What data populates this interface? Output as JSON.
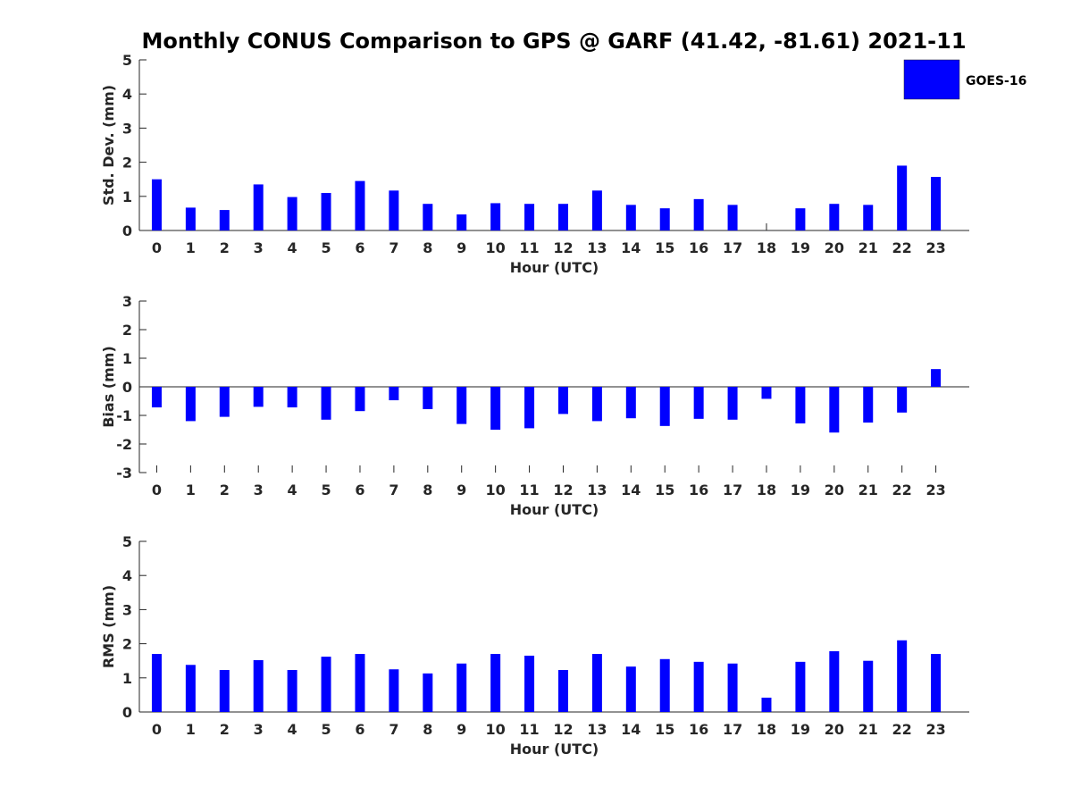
{
  "figure": {
    "title": "Monthly CONUS Comparison to GPS @ GARF (41.42, -81.61) 2021-11",
    "bar_color": "#0000ff",
    "legend": {
      "label": "GOES-16",
      "placement": "top-right"
    }
  },
  "chart_data": [
    {
      "type": "bar",
      "xlabel": "Hour (UTC)",
      "ylabel": "Std. Dev. (mm)",
      "ylim": [
        0,
        5
      ],
      "yticks": [
        0,
        1,
        2,
        3,
        4,
        5
      ],
      "categories": [
        "0",
        "1",
        "2",
        "3",
        "4",
        "5",
        "6",
        "7",
        "8",
        "9",
        "10",
        "11",
        "12",
        "13",
        "14",
        "15",
        "16",
        "17",
        "18",
        "19",
        "20",
        "21",
        "22",
        "23"
      ],
      "series": [
        {
          "name": "GOES-16",
          "values": [
            1.5,
            0.67,
            0.6,
            1.35,
            0.98,
            1.1,
            1.45,
            1.17,
            0.78,
            0.47,
            0.8,
            0.78,
            0.78,
            1.17,
            0.75,
            0.65,
            0.92,
            0.75,
            0.0,
            0.65,
            0.78,
            0.75,
            1.9,
            1.57
          ]
        }
      ]
    },
    {
      "type": "bar",
      "xlabel": "Hour (UTC)",
      "ylabel": "Bias (mm)",
      "ylim": [
        -3,
        3
      ],
      "yticks": [
        -3,
        -2,
        -1,
        0,
        1,
        2,
        3
      ],
      "categories": [
        "0",
        "1",
        "2",
        "3",
        "4",
        "5",
        "6",
        "7",
        "8",
        "9",
        "10",
        "11",
        "12",
        "13",
        "14",
        "15",
        "16",
        "17",
        "18",
        "19",
        "20",
        "21",
        "22",
        "23"
      ],
      "series": [
        {
          "name": "GOES-16",
          "values": [
            -0.72,
            -1.2,
            -1.05,
            -0.7,
            -0.72,
            -1.15,
            -0.85,
            -0.47,
            -0.78,
            -1.3,
            -1.5,
            -1.45,
            -0.95,
            -1.2,
            -1.1,
            -1.37,
            -1.12,
            -1.15,
            -0.42,
            -1.28,
            -1.6,
            -1.25,
            -0.9,
            0.62
          ]
        }
      ]
    },
    {
      "type": "bar",
      "xlabel": "Hour (UTC)",
      "ylabel": "RMS (mm)",
      "ylim": [
        0,
        5
      ],
      "yticks": [
        0,
        1,
        2,
        3,
        4,
        5
      ],
      "categories": [
        "0",
        "1",
        "2",
        "3",
        "4",
        "5",
        "6",
        "7",
        "8",
        "9",
        "10",
        "11",
        "12",
        "13",
        "14",
        "15",
        "16",
        "17",
        "18",
        "19",
        "20",
        "21",
        "22",
        "23"
      ],
      "series": [
        {
          "name": "GOES-16",
          "values": [
            1.7,
            1.38,
            1.23,
            1.52,
            1.23,
            1.62,
            1.7,
            1.25,
            1.13,
            1.42,
            1.7,
            1.65,
            1.23,
            1.7,
            1.33,
            1.55,
            1.47,
            1.42,
            0.42,
            1.47,
            1.78,
            1.5,
            2.1,
            1.7
          ]
        }
      ]
    }
  ]
}
